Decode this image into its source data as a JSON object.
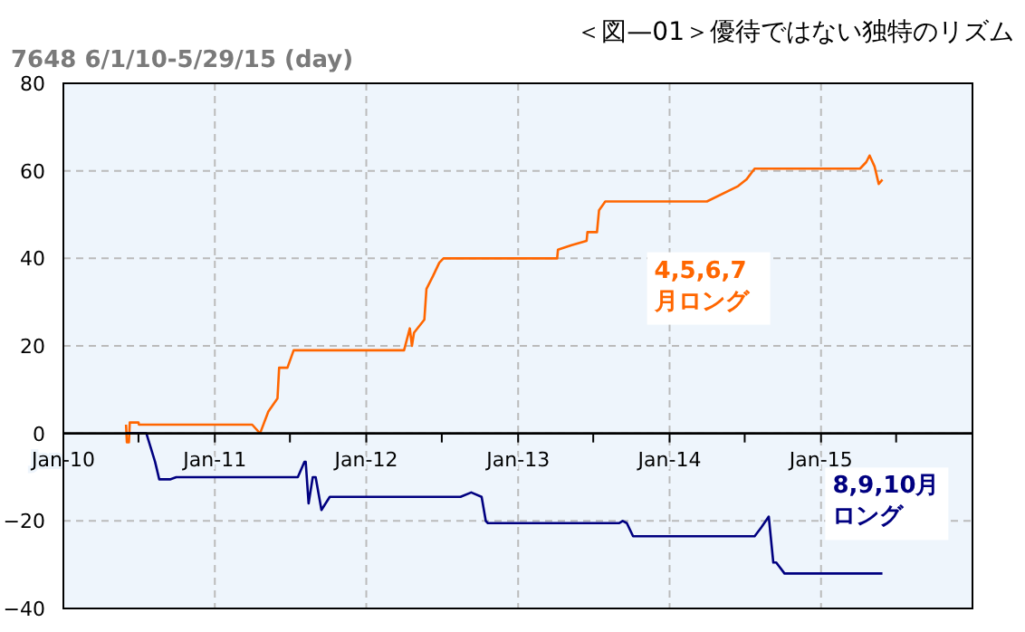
{
  "chart_data": {
    "type": "line",
    "title": "＜図—01＞優待ではない独特のリズム",
    "subtitle": "7648 6/1/10-5/29/15 (day)",
    "xlim": [
      "2010-01-01",
      "2016-01-01"
    ],
    "xticks": [
      {
        "value": "2010-01-01",
        "label": "Jan-10"
      },
      {
        "value": "2010-07-01",
        "label": null
      },
      {
        "value": "2011-01-01",
        "label": "Jan-11"
      },
      {
        "value": "2011-07-01",
        "label": null
      },
      {
        "value": "2012-01-01",
        "label": "Jan-12"
      },
      {
        "value": "2012-07-01",
        "label": null
      },
      {
        "value": "2013-01-01",
        "label": "Jan-13"
      },
      {
        "value": "2013-07-01",
        "label": null
      },
      {
        "value": "2014-01-01",
        "label": "Jan-14"
      },
      {
        "value": "2014-07-01",
        "label": null
      },
      {
        "value": "2015-01-01",
        "label": "Jan-15"
      },
      {
        "value": "2015-07-01",
        "label": null
      }
    ],
    "ylim": [
      -40,
      80
    ],
    "yticks": [
      -40,
      -20,
      0,
      20,
      40,
      60,
      80
    ],
    "grid": true,
    "marker": "none",
    "line_style": "solid",
    "series": [
      {
        "name": "4,5,6,7月ロング",
        "color": "#ff6600",
        "x": [
          "2010-06-01",
          "2010-06-03",
          "2010-06-08",
          "2010-06-10",
          "2010-07-01",
          "2010-07-02",
          "2011-04-01",
          "2011-04-20",
          "2011-05-10",
          "2011-06-01",
          "2011-06-05",
          "2011-06-25",
          "2011-07-10",
          "2012-04-01",
          "2012-04-15",
          "2012-04-20",
          "2012-04-25",
          "2012-05-20",
          "2012-05-25",
          "2012-06-10",
          "2012-06-25",
          "2012-07-05",
          "2013-04-05",
          "2013-04-07",
          "2013-05-10",
          "2013-06-15",
          "2013-06-17",
          "2013-07-10",
          "2013-07-15",
          "2013-07-30",
          "2014-04-01",
          "2014-06-15",
          "2014-07-05",
          "2014-07-25",
          "2015-04-05",
          "2015-04-20",
          "2015-04-28",
          "2015-05-10",
          "2015-05-20",
          "2015-05-29"
        ],
        "values": [
          2,
          -2,
          -2,
          2.5,
          2.5,
          2,
          2,
          0,
          5,
          8,
          15,
          15,
          19,
          19,
          24,
          20,
          23,
          26,
          33,
          36,
          39,
          40,
          40,
          42,
          43,
          44,
          46,
          46,
          51,
          53,
          53,
          56.5,
          58,
          60.5,
          60.5,
          62,
          63.5,
          61,
          57,
          58
        ]
      },
      {
        "name": "8,9,10月ロング",
        "color": "#000080",
        "x": [
          "2010-06-01",
          "2010-07-20",
          "2010-08-10",
          "2010-08-20",
          "2010-09-15",
          "2010-09-30",
          "2011-07-20",
          "2011-08-05",
          "2011-08-08",
          "2011-08-15",
          "2011-08-25",
          "2011-09-01",
          "2011-09-15",
          "2011-10-05",
          "2012-08-15",
          "2012-09-10",
          "2012-10-05",
          "2012-10-15",
          "2012-10-20",
          "2013-09-01",
          "2013-09-10",
          "2013-09-20",
          "2013-10-05",
          "2014-07-25",
          "2014-08-10",
          "2014-08-28",
          "2014-09-08",
          "2014-09-15",
          "2014-10-05",
          "2015-05-29"
        ],
        "values": [
          0,
          0,
          -6.5,
          -10.5,
          -10.5,
          -10,
          -10,
          -6.5,
          -6.5,
          -16,
          -10,
          -10,
          -17.5,
          -14.5,
          -14.5,
          -13.5,
          -14.5,
          -20,
          -20.5,
          -20.5,
          -20,
          -20.5,
          -23.5,
          -23.5,
          -21.5,
          -19,
          -29.5,
          -29.5,
          -32,
          -32
        ]
      }
    ]
  }
}
